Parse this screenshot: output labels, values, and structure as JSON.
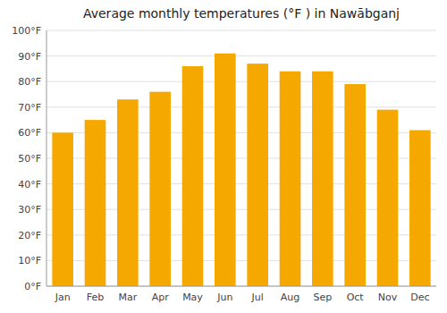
{
  "chart_data": {
    "type": "bar",
    "title": "Average monthly temperatures (°F ) in Nawābganj",
    "categories": [
      "Jan",
      "Feb",
      "Mar",
      "Apr",
      "May",
      "Jun",
      "Jul",
      "Aug",
      "Sep",
      "Oct",
      "Nov",
      "Dec"
    ],
    "values": [
      60,
      65,
      73,
      76,
      86,
      91,
      87,
      84,
      84,
      79,
      69,
      61
    ],
    "color": "#F5A800",
    "ylim": [
      0,
      100
    ],
    "yticks": [
      {
        "value": 0,
        "label": "0°F"
      },
      {
        "value": 10,
        "label": "10°F"
      },
      {
        "value": 20,
        "label": "20°F"
      },
      {
        "value": 30,
        "label": "30°F"
      },
      {
        "value": 40,
        "label": "40°F"
      },
      {
        "value": 50,
        "label": "50°F"
      },
      {
        "value": 60,
        "label": "60°F"
      },
      {
        "value": 70,
        "label": "70°F"
      },
      {
        "value": 80,
        "label": "80°F"
      },
      {
        "value": 90,
        "label": "90°F"
      },
      {
        "value": 100,
        "label": "100°F"
      }
    ],
    "grid": true
  }
}
